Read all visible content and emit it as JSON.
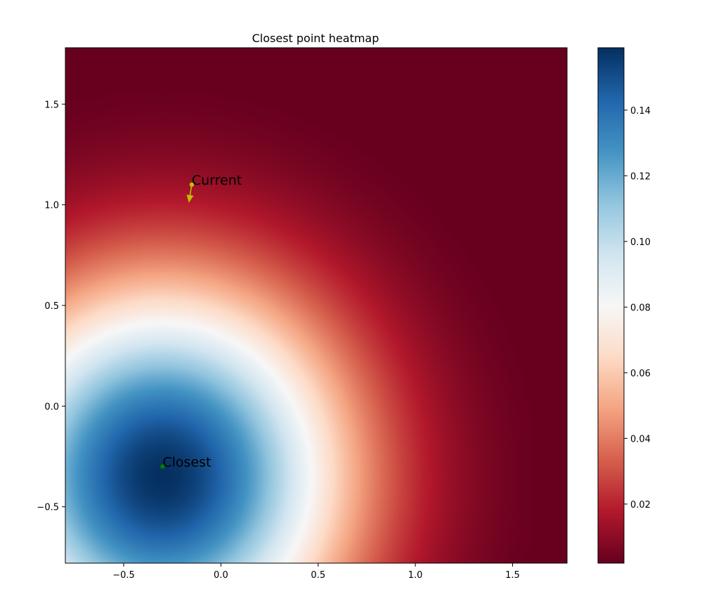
{
  "chart_data": {
    "type": "heatmap",
    "title": "Closest point heatmap",
    "xlabel": "",
    "ylabel": "",
    "xlim": [
      -0.8,
      1.78
    ],
    "ylim": [
      -0.78,
      1.78
    ],
    "x_ticks": [
      -0.5,
      0.0,
      0.5,
      1.0,
      1.5
    ],
    "y_ticks": [
      -0.5,
      0.0,
      0.5,
      1.0,
      1.5
    ],
    "x_tick_labels": [
      "−0.5",
      "0.0",
      "0.5",
      "1.0",
      "1.5"
    ],
    "y_tick_labels": [
      "−0.5",
      "0.0",
      "0.5",
      "1.0",
      "1.5"
    ],
    "colormap": "RdBu",
    "value_range": [
      0.002,
      0.159
    ],
    "field": {
      "form": "gaussian",
      "center": [
        -0.3,
        -0.35
      ],
      "peak": 0.159,
      "sigma": 0.655
    },
    "colorbar": {
      "ticks": [
        0.02,
        0.04,
        0.06,
        0.08,
        0.1,
        0.12,
        0.14
      ],
      "tick_labels": [
        "0.02",
        "0.04",
        "0.06",
        "0.08",
        "0.10",
        "0.12",
        "0.14"
      ]
    },
    "annotations": [
      {
        "label": "Current",
        "x": -0.15,
        "y": 1.1,
        "color": "#bfbf00",
        "arrow_to": [
          -0.165,
          1.01
        ],
        "arrow_color": "#bfbf00"
      },
      {
        "label": "Closest",
        "x": -0.3,
        "y": -0.3,
        "color": "#008000"
      }
    ]
  }
}
